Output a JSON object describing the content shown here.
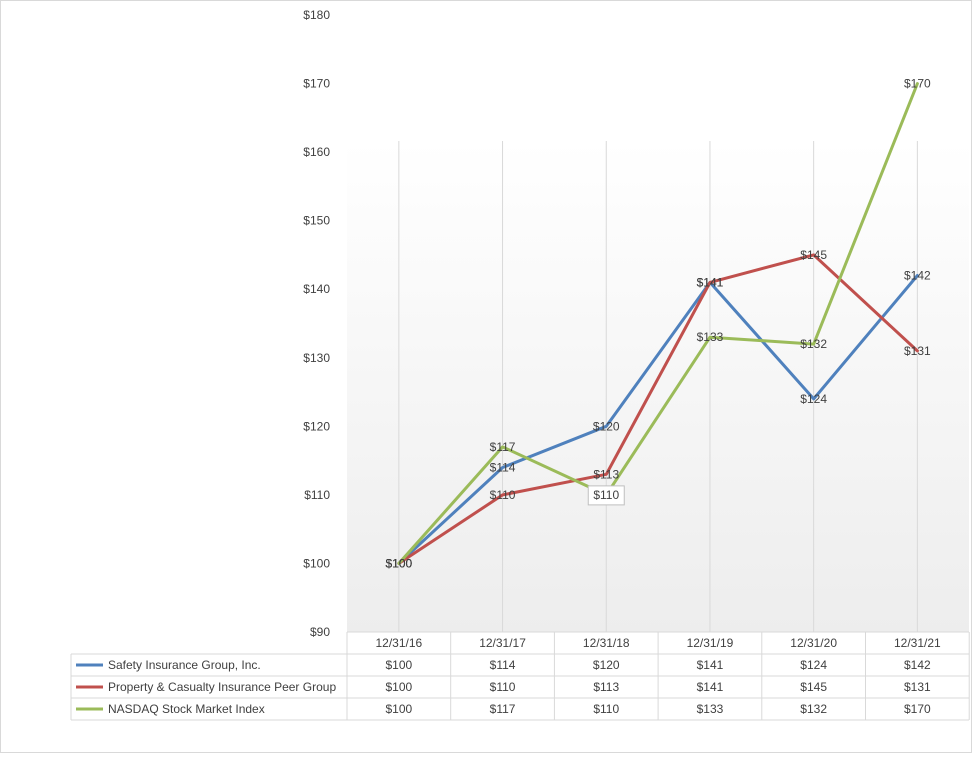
{
  "chart_data": {
    "type": "line",
    "title": "",
    "xlabel": "",
    "ylabel": "",
    "categories": [
      "12/31/16",
      "12/31/17",
      "12/31/18",
      "12/31/19",
      "12/31/20",
      "12/31/21"
    ],
    "ylim": [
      90,
      180
    ],
    "ytick_step": 10,
    "ytick_prefix": "$",
    "grid": "vertical",
    "legend": "data-table-below",
    "series": [
      {
        "name": "Safety Insurance Group, Inc.",
        "color": "#4f81bd",
        "values": [
          100,
          114,
          120,
          141,
          124,
          142
        ],
        "labels": [
          "$100",
          "$114",
          "$120",
          "$141",
          "$124",
          "$142"
        ]
      },
      {
        "name": "Property & Casualty Insurance Peer Group",
        "color": "#c0504d",
        "values": [
          100,
          110,
          113,
          141,
          145,
          131
        ],
        "labels": [
          "$100",
          "$110",
          "$113",
          "$141",
          "$145",
          "$131"
        ]
      },
      {
        "name": "NASDAQ Stock Market Index",
        "color": "#9bbb59",
        "values": [
          100,
          117,
          110,
          133,
          132,
          170
        ],
        "labels": [
          "$100",
          "$117",
          "$110",
          "$133",
          "$132",
          "$170"
        ]
      }
    ]
  }
}
